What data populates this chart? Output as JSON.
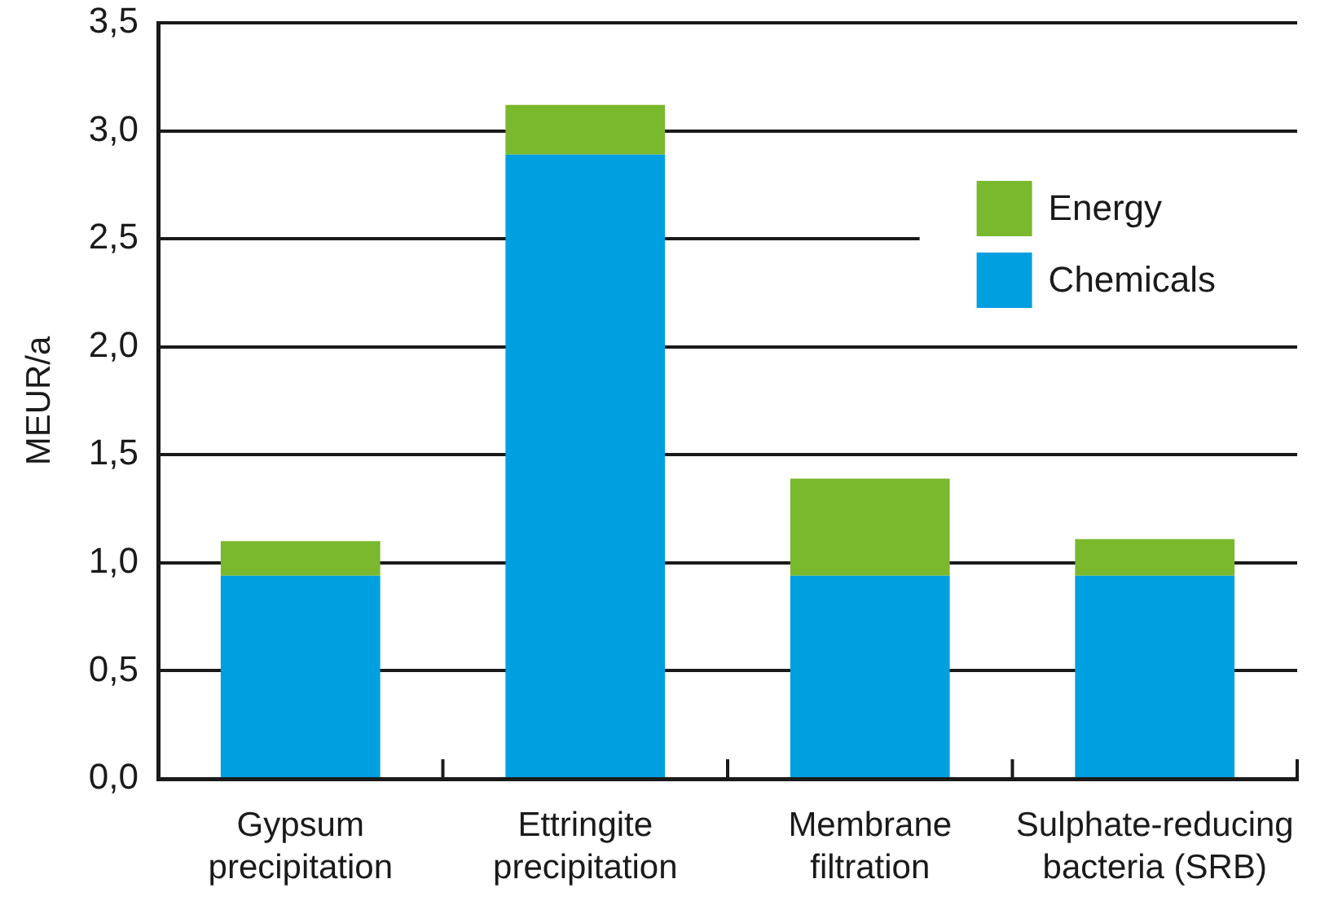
{
  "chart_data": {
    "type": "bar",
    "ylabel": "MEUR/a",
    "categories": [
      "Gypsum precipitation",
      "Ettringite precipitation",
      "Membrane filtration",
      "Sulphate-reducing bacteria (SRB)"
    ],
    "series": [
      {
        "name": "Chemicals",
        "color": "#009fe0",
        "values": [
          0.94,
          2.89,
          0.94,
          0.94
        ]
      },
      {
        "name": "Energy",
        "color": "#7ab82e",
        "values": [
          0.16,
          0.23,
          0.45,
          0.17
        ]
      }
    ],
    "stacked": true,
    "ylim": [
      0,
      3.5
    ],
    "yticks": [
      {
        "value": 0,
        "label": "0,0"
      },
      {
        "value": 0.5,
        "label": "0,5"
      },
      {
        "value": 1,
        "label": "1,0"
      },
      {
        "value": 1.5,
        "label": "1,5"
      },
      {
        "value": 2,
        "label": "2,0"
      },
      {
        "value": 2.5,
        "label": "2,5"
      },
      {
        "value": 3,
        "label": "3,0"
      },
      {
        "value": 3.5,
        "label": "3,5"
      }
    ],
    "grid": "y",
    "legend": "top right"
  }
}
